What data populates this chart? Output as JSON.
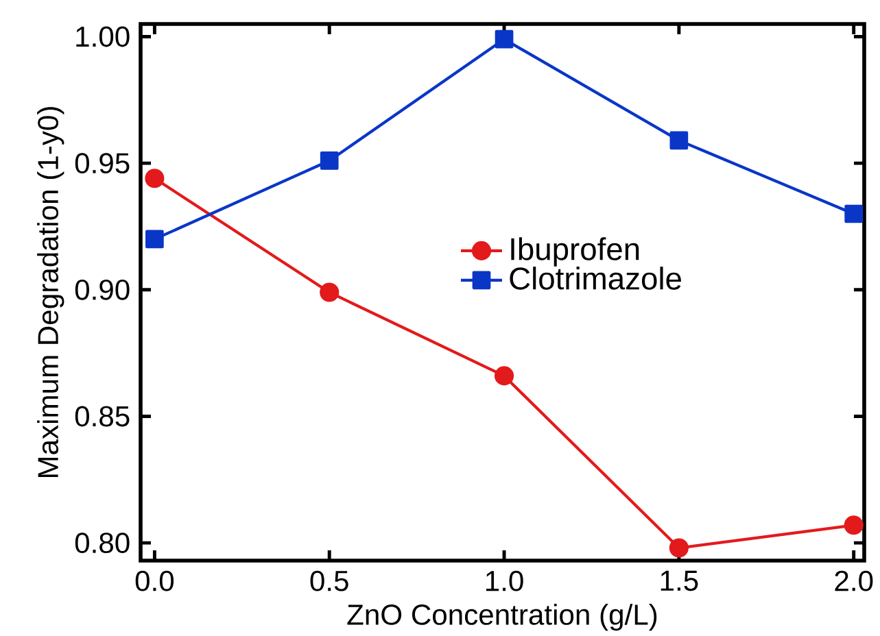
{
  "chart_data": {
    "type": "line",
    "xlabel": "ZnO Concentration (g/L)",
    "ylabel": "Maximum Degradation (1-y0)",
    "x": [
      0.0,
      0.5,
      1.0,
      1.5,
      2.0
    ],
    "series": [
      {
        "name": "Ibuprofen",
        "color": "#e31a1c",
        "marker": "circle",
        "values": [
          0.944,
          0.899,
          0.866,
          0.798,
          0.807
        ]
      },
      {
        "name": "Clotrimazole",
        "color": "#0a36c8",
        "marker": "square",
        "values": [
          0.92,
          0.951,
          0.999,
          0.959,
          0.93
        ]
      }
    ],
    "xlim": [
      -0.04,
      2.03
    ],
    "ylim": [
      0.793,
      1.005
    ],
    "xticks": [
      {
        "value": 0.0,
        "label": "0.0"
      },
      {
        "value": 0.5,
        "label": "0.5"
      },
      {
        "value": 1.0,
        "label": "1.0"
      },
      {
        "value": 1.5,
        "label": "1.5"
      },
      {
        "value": 2.0,
        "label": "2.0"
      }
    ],
    "yticks": [
      {
        "value": 0.8,
        "label": "0.80"
      },
      {
        "value": 0.85,
        "label": "0.85"
      },
      {
        "value": 0.9,
        "label": "0.90"
      },
      {
        "value": 0.95,
        "label": "0.95"
      },
      {
        "value": 1.0,
        "label": "1.00"
      }
    ],
    "legend": "center",
    "grid": false,
    "line_style": "solid"
  }
}
